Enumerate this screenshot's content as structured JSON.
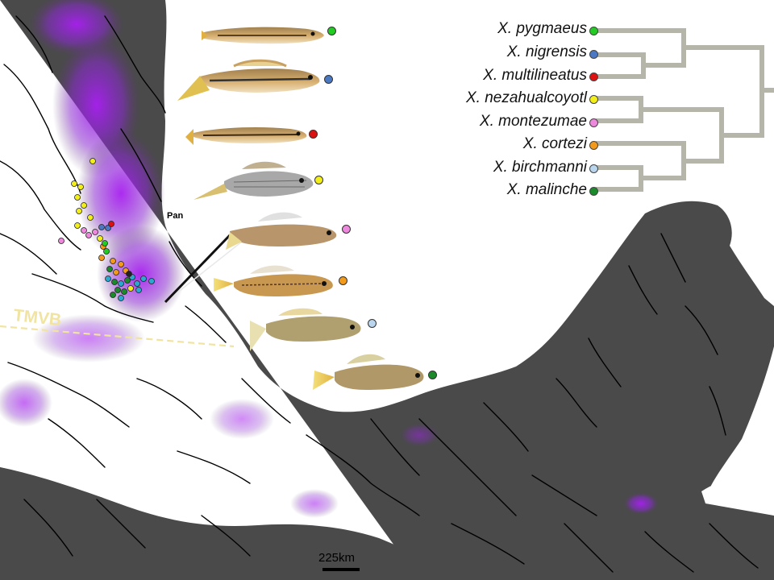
{
  "species": [
    {
      "name": "X. pygmaeus",
      "color": "#22cc22"
    },
    {
      "name": "X. nigrensis",
      "color": "#4a78c2"
    },
    {
      "name": "X. multilineatus",
      "color": "#dd1111"
    },
    {
      "name": "X. nezahualcoyotl",
      "color": "#f2ee1a"
    },
    {
      "name": "X. montezumae",
      "color": "#ee88dd"
    },
    {
      "name": "X. cortezi",
      "color": "#f39a1a"
    },
    {
      "name": "X. birchmanni",
      "color": "#b9d6ee"
    },
    {
      "name": "X. malinche",
      "color": "#1a8a2a"
    }
  ],
  "map": {
    "region_label": "TMVB",
    "site_label": "Pan",
    "scale_label": "225km",
    "land_color": "#4a4a4a",
    "highland_color": "#a020f0",
    "river_color": "#000000",
    "tree_color": "#b5b5aa"
  }
}
